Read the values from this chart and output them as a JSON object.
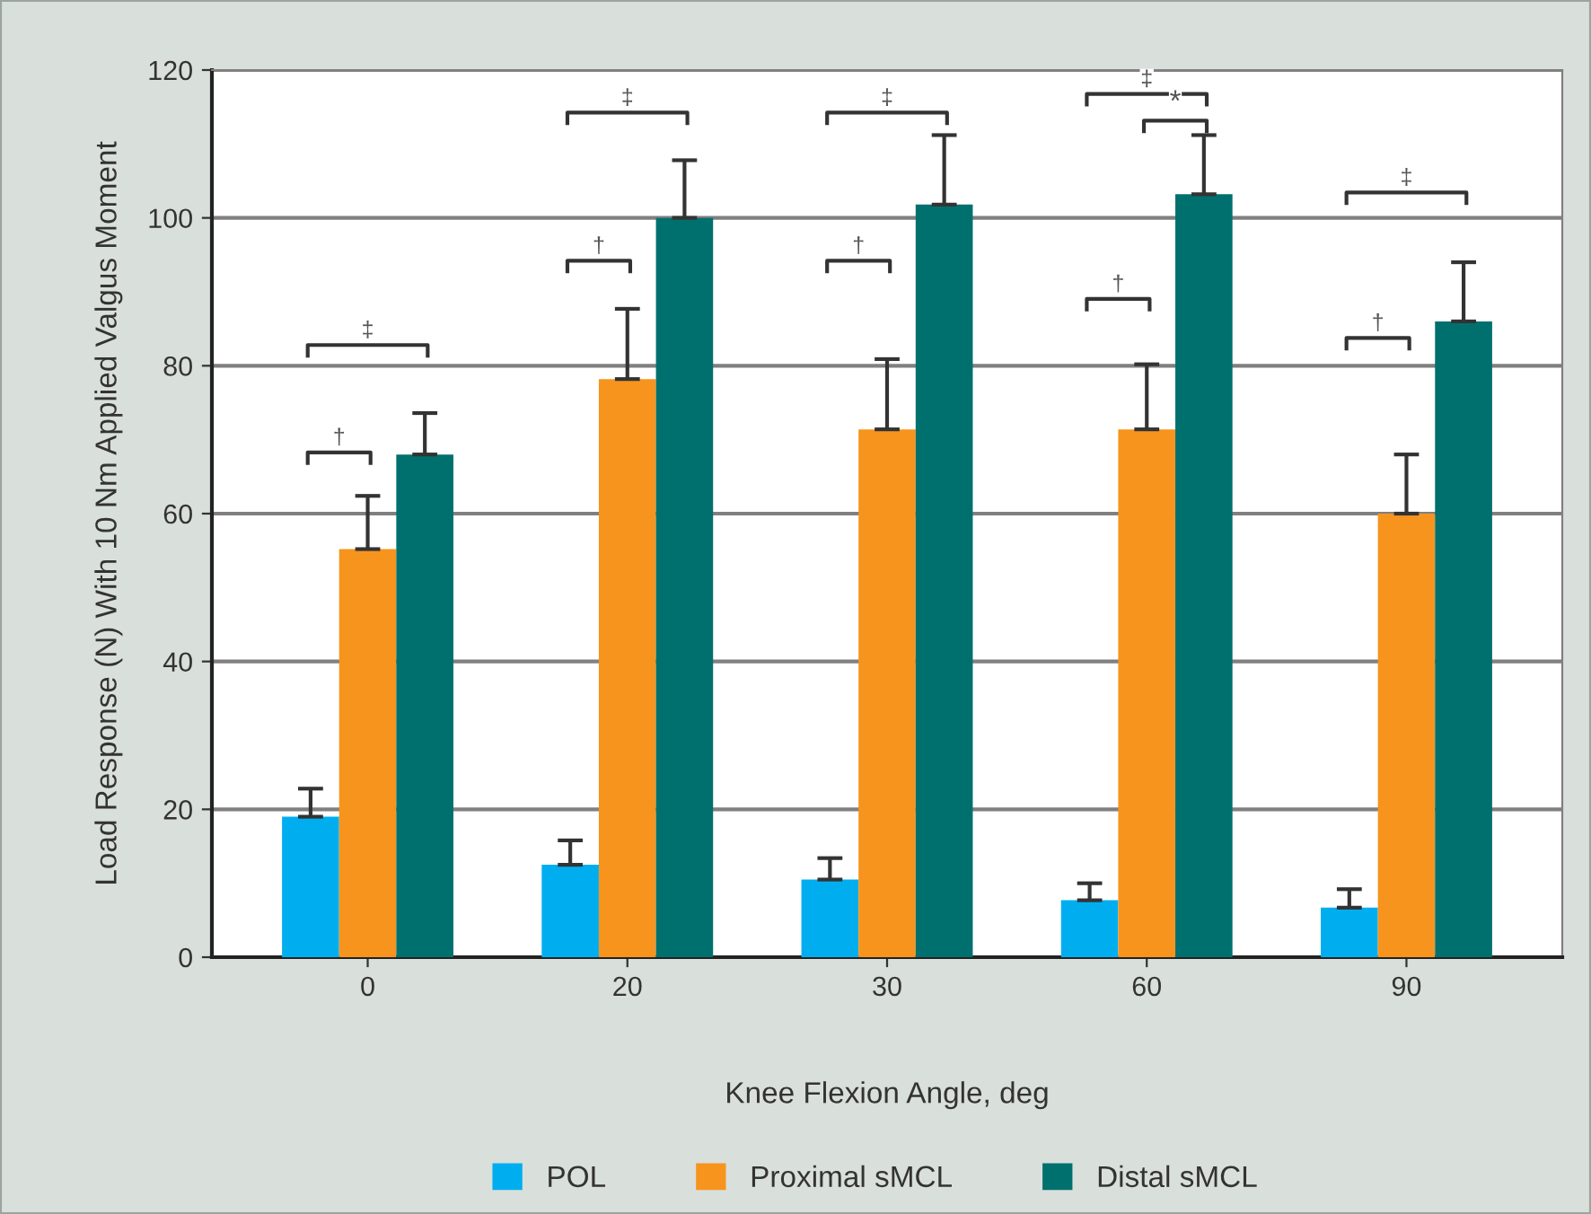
{
  "chart_data": {
    "type": "bar",
    "xlabel": "Knee Flexion Angle, deg",
    "ylabel": "Load Response (N) With 10 Nm Applied Valgus Moment",
    "categories": [
      "0",
      "20",
      "30",
      "60",
      "90"
    ],
    "series": [
      {
        "name": "POL",
        "color": "#00aeef",
        "values": [
          19,
          12.5,
          10.5,
          7.7,
          6.7
        ],
        "errors": [
          [
            19,
            22.8
          ],
          [
            12.5,
            15.8
          ],
          [
            10.5,
            13.4
          ],
          [
            7.7,
            10.0
          ],
          [
            6.7,
            9.2
          ]
        ]
      },
      {
        "name": "Proximal sMCL",
        "color": "#f7941d",
        "values": [
          55.2,
          78.2,
          71.4,
          71.4,
          60.0
        ],
        "errors": [
          [
            55.2,
            62.4
          ],
          [
            78.2,
            87.7
          ],
          [
            71.4,
            80.9
          ],
          [
            71.4,
            80.2
          ],
          [
            60.0,
            68.0
          ]
        ]
      },
      {
        "name": "Distal sMCL",
        "color": "#00706e",
        "values": [
          68.0,
          100.0,
          101.8,
          103.2,
          86.0
        ],
        "errors": [
          [
            68.0,
            73.6
          ],
          [
            100.0,
            107.8
          ],
          [
            101.8,
            111.2
          ],
          [
            103.2,
            111.2
          ],
          [
            86.0,
            94.0
          ]
        ]
      }
    ],
    "ylim": [
      0,
      120
    ],
    "yticks": [
      0,
      20,
      40,
      60,
      80,
      100,
      120
    ],
    "grid": "y",
    "legend": "bottom",
    "annotations": [
      "†",
      "‡",
      "†",
      "‡",
      "†",
      "‡",
      "†",
      "‡",
      "*",
      "†",
      "‡"
    ]
  }
}
